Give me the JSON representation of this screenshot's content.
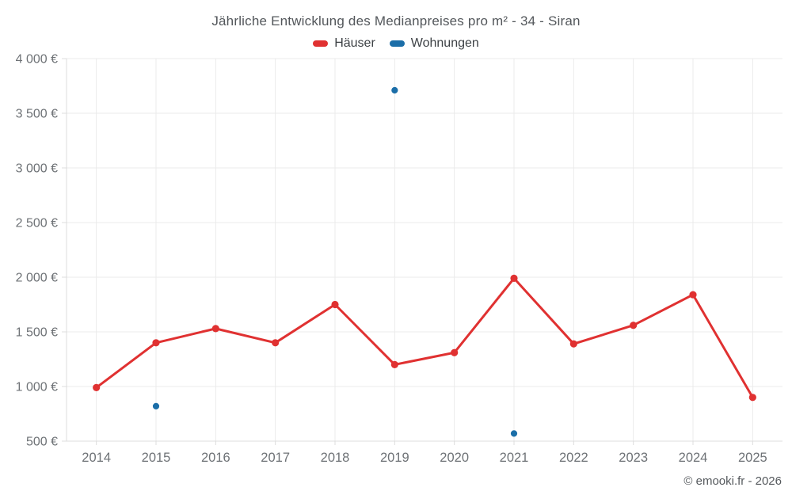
{
  "title": "Jährliche Entwicklung des Medianpreises pro m² - 34 - Siran",
  "legend": [
    {
      "label": "Häuser",
      "color": "#e03131"
    },
    {
      "label": "Wohnungen",
      "color": "#1b6ea8"
    }
  ],
  "copyright": "© emooki.fr - 2026",
  "colors": {
    "haeuser_red": "#e03131",
    "wohnungen_blue": "#1b6ea8",
    "gridline": "#ebebeb",
    "axis_line": "#dcdcdc",
    "tick_label": "#6e7276",
    "title_text": "#53575b",
    "background": "#ffffff"
  },
  "chart_data": {
    "type": "line",
    "x": [
      "2014",
      "2015",
      "2016",
      "2017",
      "2018",
      "2019",
      "2020",
      "2021",
      "2022",
      "2023",
      "2024",
      "2025"
    ],
    "series": [
      {
        "name": "Häuser",
        "type": "line",
        "color": "#e03131",
        "values": [
          990,
          1400,
          1530,
          1400,
          1750,
          1200,
          1310,
          1990,
          1390,
          1560,
          1840,
          900
        ]
      },
      {
        "name": "Wohnungen",
        "type": "scatter",
        "color": "#1b6ea8",
        "values": [
          null,
          820,
          null,
          null,
          null,
          3710,
          null,
          570,
          null,
          null,
          null,
          null
        ]
      }
    ],
    "title": "Jährliche Entwicklung des Medianpreises pro m² - 34 - Siran",
    "xlabel": "",
    "ylabel": "",
    "ylim": [
      500,
      4000
    ],
    "yticks": [
      500,
      1000,
      1500,
      2000,
      2500,
      3000,
      3500,
      4000
    ],
    "ytick_labels": [
      "500 €",
      "1 000 €",
      "1 500 €",
      "2 000 €",
      "2 500 €",
      "3 000 €",
      "3 500 €",
      "4 000 €"
    ],
    "grid": true,
    "legend_position": "top"
  }
}
